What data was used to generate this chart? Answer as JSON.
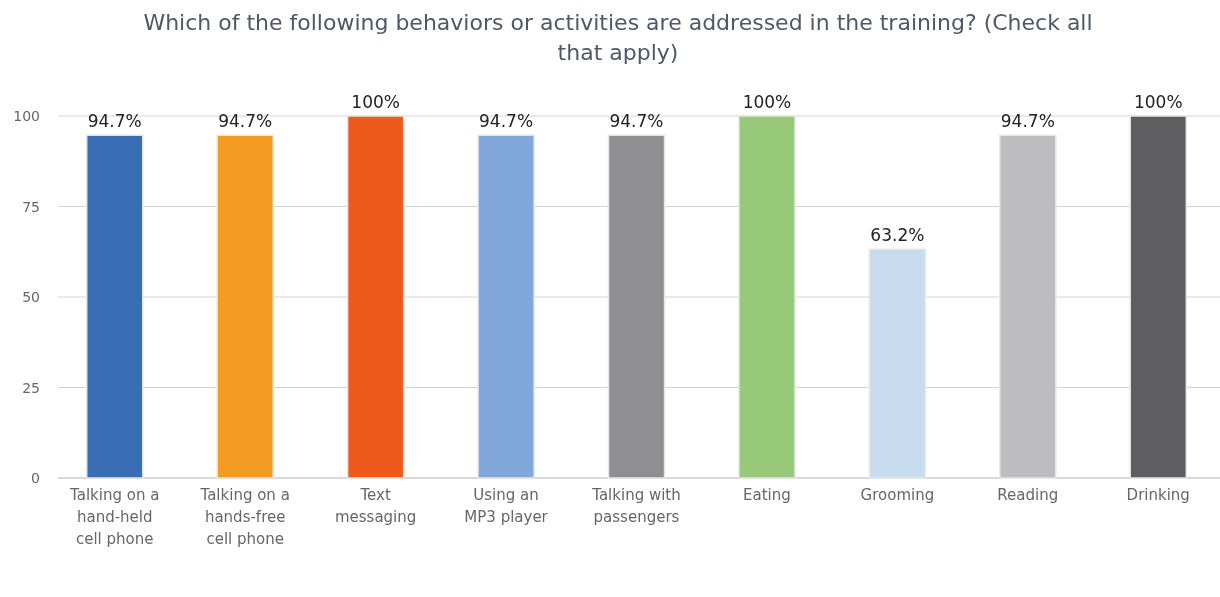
{
  "chart_data": {
    "type": "bar",
    "title": "Which of the following behaviors or activities are addressed in the training? (Check all that apply)",
    "categories": [
      "Talking on a hand-held cell phone",
      "Talking on a hands-free cell phone",
      "Text messaging",
      "Using an MP3 player",
      "Talking with passengers",
      "Eating",
      "Grooming",
      "Reading",
      "Drinking"
    ],
    "values": [
      94.7,
      94.7,
      100,
      94.7,
      94.7,
      100,
      63.2,
      94.7,
      100
    ],
    "value_labels": [
      "94.7%",
      "94.7%",
      "100%",
      "94.7%",
      "94.7%",
      "100%",
      "63.2%",
      "94.7%",
      "100%"
    ],
    "colors": [
      "#3b6db7",
      "#f39b22",
      "#ee5a1c",
      "#80a8db",
      "#8f8f91",
      "#98c97b",
      "#c8dcf0",
      "#bdbdbf",
      "#5e5e60"
    ],
    "ylim": [
      0,
      100
    ],
    "yticks": [
      0,
      25,
      50,
      75,
      100
    ],
    "grid": "y"
  }
}
